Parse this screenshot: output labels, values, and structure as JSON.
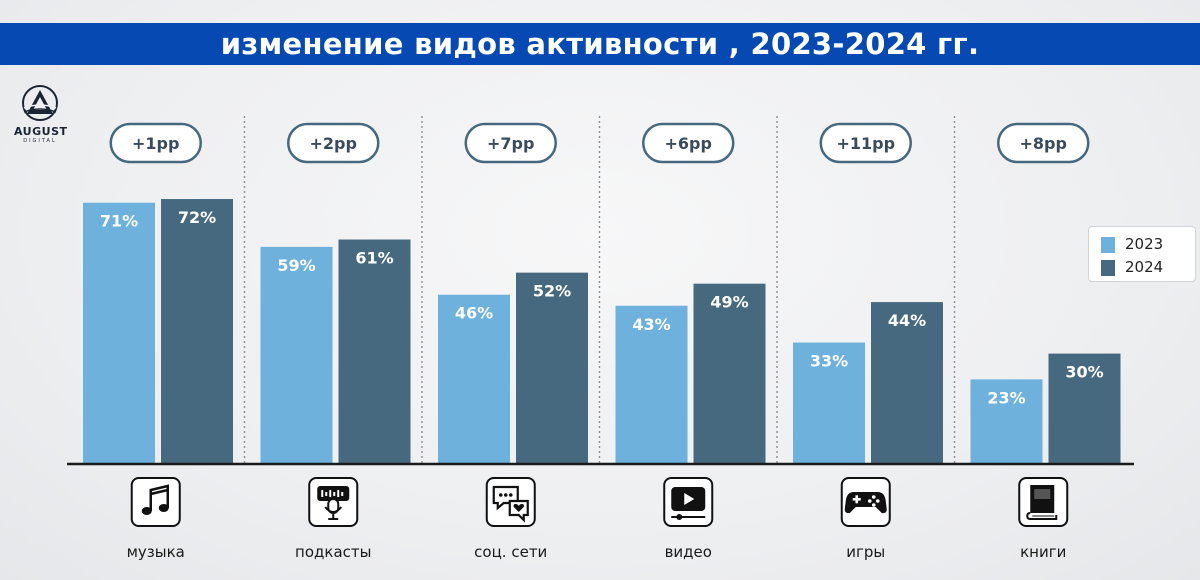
{
  "title": "изменение видов активности , 2023-2024 гг.",
  "logo": {
    "name": "AUGUST",
    "sub": "DIGITAL"
  },
  "colors": {
    "s2023": "#6db1dc",
    "s2024": "#46697f",
    "accent": "#0649b3",
    "delta_border": "#46697f"
  },
  "chart_data": {
    "type": "bar",
    "title": "изменение видов активности , 2023-2024 гг.",
    "ylabel": "",
    "xlabel": "",
    "ylim": [
      0,
      100
    ],
    "categories": [
      "музыка",
      "подкасты",
      "соц. сети",
      "видео",
      "игры",
      "книги"
    ],
    "icons": [
      "music-icon",
      "podcast-icon",
      "social-icon",
      "video-icon",
      "games-icon",
      "book-icon"
    ],
    "deltas": [
      "+1pp",
      "+2pp",
      "+7pp",
      "+6pp",
      "+11pp",
      "+8pp"
    ],
    "series": [
      {
        "name": "2023",
        "values": [
          71,
          59,
          46,
          43,
          33,
          23
        ],
        "labels": [
          "71%",
          "59%",
          "46%",
          "43%",
          "33%",
          "23%"
        ]
      },
      {
        "name": "2024",
        "values": [
          72,
          61,
          52,
          49,
          44,
          30
        ],
        "labels": [
          "72%",
          "61%",
          "52%",
          "49%",
          "44%",
          "30%"
        ]
      }
    ],
    "legend": {
      "position": "right",
      "items": [
        "2023",
        "2024"
      ]
    }
  }
}
